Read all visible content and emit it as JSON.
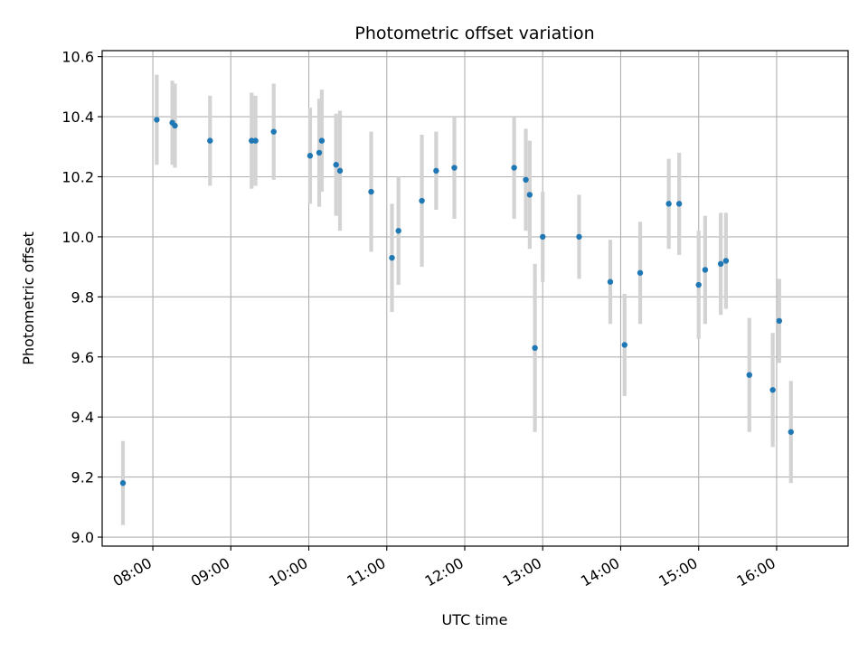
{
  "chart_data": {
    "type": "scatter",
    "title": "Photometric offset variation",
    "xlabel": "UTC time",
    "ylabel": "Photometric offset",
    "x_ticks": [
      "08:00",
      "09:00",
      "10:00",
      "11:00",
      "12:00",
      "13:00",
      "14:00",
      "15:00",
      "16:00"
    ],
    "y_ticks": [
      "9.0",
      "9.2",
      "9.4",
      "9.6",
      "9.8",
      "10.0",
      "10.2",
      "10.4",
      "10.6"
    ],
    "xlim": [
      "07:21",
      "16:55"
    ],
    "ylim": [
      8.97,
      10.62
    ],
    "grid": true,
    "colors": {
      "point": "#1f77b4",
      "errorbar": "#d3d3d3",
      "grid": "#b0b0b0"
    },
    "points": [
      {
        "time": "07:37",
        "y": 9.18,
        "err": 0.14
      },
      {
        "time": "08:03",
        "y": 10.39,
        "err": 0.15
      },
      {
        "time": "08:15",
        "y": 10.38,
        "err": 0.14
      },
      {
        "time": "08:17",
        "y": 10.37,
        "err": 0.14
      },
      {
        "time": "08:44",
        "y": 10.32,
        "err": 0.15
      },
      {
        "time": "09:16",
        "y": 10.32,
        "err": 0.16
      },
      {
        "time": "09:19",
        "y": 10.32,
        "err": 0.15
      },
      {
        "time": "09:33",
        "y": 10.35,
        "err": 0.16
      },
      {
        "time": "10:01",
        "y": 10.27,
        "err": 0.16
      },
      {
        "time": "10:08",
        "y": 10.28,
        "err": 0.18
      },
      {
        "time": "10:10",
        "y": 10.32,
        "err": 0.17
      },
      {
        "time": "10:21",
        "y": 10.24,
        "err": 0.17
      },
      {
        "time": "10:24",
        "y": 10.22,
        "err": 0.2
      },
      {
        "time": "10:48",
        "y": 10.15,
        "err": 0.2
      },
      {
        "time": "11:04",
        "y": 9.93,
        "err": 0.18
      },
      {
        "time": "11:09",
        "y": 10.02,
        "err": 0.18
      },
      {
        "time": "11:27",
        "y": 10.12,
        "err": 0.22
      },
      {
        "time": "11:38",
        "y": 10.22,
        "err": 0.13
      },
      {
        "time": "11:52",
        "y": 10.23,
        "err": 0.17
      },
      {
        "time": "12:38",
        "y": 10.23,
        "err": 0.17
      },
      {
        "time": "12:47",
        "y": 10.19,
        "err": 0.17
      },
      {
        "time": "12:50",
        "y": 10.14,
        "err": 0.18
      },
      {
        "time": "12:54",
        "y": 9.63,
        "err": 0.28
      },
      {
        "time": "13:00",
        "y": 10.0,
        "err": 0.15
      },
      {
        "time": "13:28",
        "y": 10.0,
        "err": 0.14
      },
      {
        "time": "13:52",
        "y": 9.85,
        "err": 0.14
      },
      {
        "time": "14:03",
        "y": 9.64,
        "err": 0.17
      },
      {
        "time": "14:15",
        "y": 9.88,
        "err": 0.17
      },
      {
        "time": "14:37",
        "y": 10.11,
        "err": 0.15
      },
      {
        "time": "14:45",
        "y": 10.11,
        "err": 0.17
      },
      {
        "time": "15:00",
        "y": 9.84,
        "err": 0.18
      },
      {
        "time": "15:05",
        "y": 9.89,
        "err": 0.18
      },
      {
        "time": "15:17",
        "y": 9.91,
        "err": 0.17
      },
      {
        "time": "15:21",
        "y": 9.92,
        "err": 0.16
      },
      {
        "time": "15:39",
        "y": 9.54,
        "err": 0.19
      },
      {
        "time": "15:57",
        "y": 9.49,
        "err": 0.19
      },
      {
        "time": "16:02",
        "y": 9.72,
        "err": 0.14
      },
      {
        "time": "16:11",
        "y": 9.35,
        "err": 0.17
      }
    ]
  }
}
